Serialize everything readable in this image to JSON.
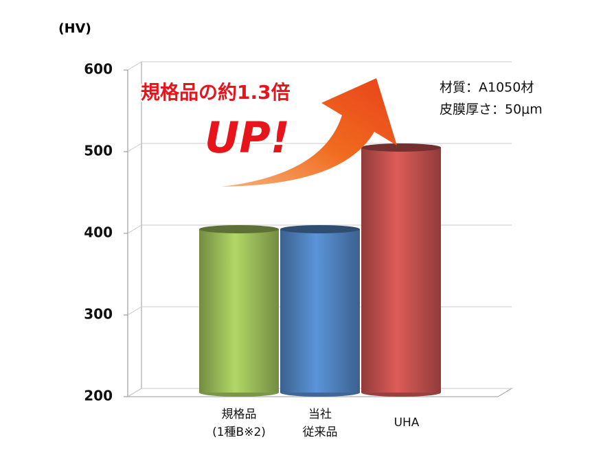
{
  "chart_data": {
    "type": "cylinder-bar",
    "y_unit": "(HV)",
    "categories": [
      [
        "規格品",
        "(1種B※2)"
      ],
      [
        "当社",
        "従来品"
      ],
      [
        "UHA"
      ]
    ],
    "values": [
      400,
      400,
      500
    ],
    "colors": [
      "#9bbb59",
      "#4f81bd",
      "#c0504d"
    ],
    "ylim": [
      200,
      600
    ],
    "yticks": [
      200,
      300,
      400,
      500,
      600
    ],
    "grid": true,
    "annotations": {
      "headline": "規格品の約1.3倍",
      "up": "UP!",
      "material": "材質：A1050材",
      "thickness": "皮膜厚さ：50μm"
    }
  }
}
